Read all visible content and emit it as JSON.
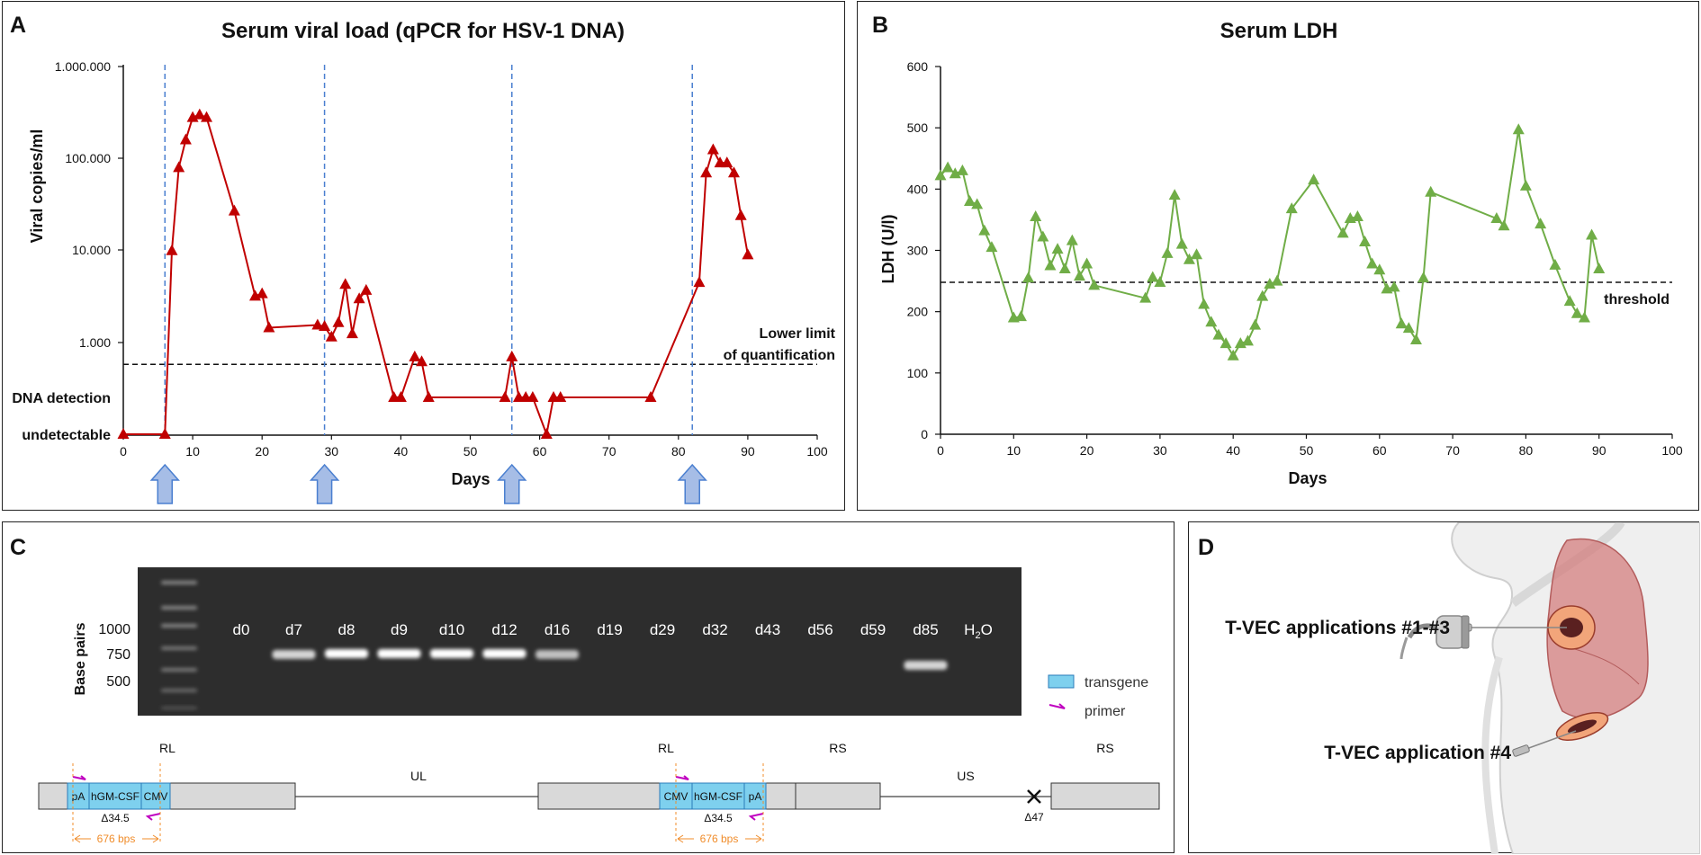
{
  "panel_a": {
    "letter": "A",
    "title": "Serum viral load (qPCR for HSV-1 DNA)",
    "x_label": "Days",
    "y_label": "Viral copies/ml",
    "y_ticks": [
      "1.000.000",
      "100.000",
      "10.000",
      "1.000"
    ],
    "level_labels": [
      "DNA detection",
      "undetectable"
    ],
    "x_ticks": [
      "0",
      "10",
      "20",
      "30",
      "40",
      "50",
      "60",
      "70",
      "80",
      "90",
      "100"
    ],
    "lloq_line1": "Lower limit",
    "lloq_line2": "of quantification",
    "colors": {
      "series": "#c00000",
      "injection": "#4a7fd0",
      "arrow_fill": "#a6bde6"
    }
  },
  "panel_b": {
    "letter": "B",
    "title": "Serum LDH",
    "x_label": "Days",
    "y_label": "LDH (U/l)",
    "threshold_label": "threshold",
    "y_ticks": [
      "0",
      "100",
      "200",
      "300",
      "400",
      "500",
      "600"
    ],
    "x_ticks": [
      "0",
      "10",
      "20",
      "30",
      "40",
      "50",
      "60",
      "70",
      "80",
      "90",
      "100"
    ],
    "colors": {
      "series": "#70ad47"
    }
  },
  "chart_data": [
    {
      "type": "line",
      "title": "Serum viral load (qPCR for HSV-1 DNA)",
      "xlabel": "Days",
      "ylabel": "Viral copies/ml",
      "xlim": [
        0,
        100
      ],
      "yscale": "log",
      "ylim": [
        1000,
        1000000
      ],
      "categorical_levels": [
        "DNA detection",
        "undetectable"
      ],
      "lower_limit_of_quantification": 580,
      "injection_days": [
        6,
        29,
        56,
        82
      ],
      "series": [
        {
          "name": "HSV-1 DNA",
          "points": [
            [
              0,
              "undetectable"
            ],
            [
              6,
              "undetectable"
            ],
            [
              7,
              10000
            ],
            [
              8,
              80000
            ],
            [
              9,
              160000
            ],
            [
              10,
              280000
            ],
            [
              11,
              300000
            ],
            [
              12,
              280000
            ],
            [
              16,
              27000
            ],
            [
              19,
              3200
            ],
            [
              20,
              3400
            ],
            [
              21,
              1450
            ],
            [
              28,
              1550
            ],
            [
              29,
              1500
            ],
            [
              30,
              1150
            ],
            [
              31,
              1650
            ],
            [
              32,
              4300
            ],
            [
              33,
              1250
            ],
            [
              34,
              3000
            ],
            [
              35,
              3700
            ],
            [
              39,
              "DNA detection"
            ],
            [
              40,
              "DNA detection"
            ],
            [
              42,
              700
            ],
            [
              43,
              620
            ],
            [
              44,
              "DNA detection"
            ],
            [
              55,
              "DNA detection"
            ],
            [
              56,
              700
            ],
            [
              57,
              "DNA detection"
            ],
            [
              58,
              "DNA detection"
            ],
            [
              59,
              "DNA detection"
            ],
            [
              61,
              "undetectable"
            ],
            [
              62,
              "DNA detection"
            ],
            [
              63,
              "DNA detection"
            ],
            [
              76,
              "DNA detection"
            ],
            [
              83,
              4500
            ],
            [
              84,
              70000
            ],
            [
              85,
              125000
            ],
            [
              86,
              90000
            ],
            [
              87,
              90000
            ],
            [
              88,
              70000
            ],
            [
              89,
              24000
            ],
            [
              90,
              9000
            ]
          ]
        }
      ]
    },
    {
      "type": "line",
      "title": "Serum LDH",
      "xlabel": "Days",
      "ylabel": "LDH (U/l)",
      "xlim": [
        0,
        100
      ],
      "ylim": [
        0,
        600
      ],
      "threshold": 248,
      "series": [
        {
          "name": "LDH",
          "x": [
            0,
            1,
            2,
            3,
            4,
            5,
            6,
            7,
            10,
            11,
            12,
            13,
            14,
            15,
            16,
            17,
            18,
            19,
            20,
            21,
            28,
            29,
            30,
            31,
            32,
            33,
            34,
            35,
            36,
            37,
            38,
            39,
            40,
            41,
            42,
            43,
            44,
            45,
            46,
            48,
            51,
            55,
            56,
            57,
            58,
            59,
            60,
            61,
            62,
            63,
            64,
            65,
            66,
            67,
            76,
            77,
            79,
            80,
            82,
            84,
            86,
            87,
            88,
            89,
            90
          ],
          "y": [
            422,
            435,
            425,
            430,
            380,
            375,
            332,
            305,
            190,
            192,
            255,
            355,
            322,
            275,
            302,
            270,
            316,
            258,
            278,
            243,
            222,
            256,
            248,
            295,
            390,
            310,
            285,
            293,
            212,
            183,
            162,
            148,
            128,
            148,
            152,
            178,
            225,
            245,
            250,
            368,
            415,
            328,
            352,
            355,
            314,
            278,
            268,
            237,
            240,
            180,
            173,
            154,
            255,
            395,
            352,
            340,
            497,
            405,
            343,
            276,
            217,
            197,
            190,
            325,
            270
          ]
        }
      ]
    }
  ],
  "panel_c": {
    "letter": "C",
    "y_label": "Base pairs",
    "bp_labels": [
      "1000",
      "750",
      "500"
    ],
    "lanes": [
      "d0",
      "d7",
      "d8",
      "d9",
      "d10",
      "d12",
      "d16",
      "d19",
      "d29",
      "d32",
      "d43",
      "d56",
      "d59",
      "d85",
      "H2O"
    ],
    "legend": {
      "transgene": "transgene",
      "primer": "primer"
    },
    "map": {
      "rl": "RL",
      "ul": "UL",
      "rs": "RS",
      "us": "US",
      "pa": "pA",
      "hgm": "hGM-CSF",
      "cmv": "CMV",
      "delta345": "Δ34.5",
      "delta47": "Δ47",
      "amplicon": "676 bps"
    },
    "colors": {
      "transgene": "#7ed0ee",
      "primer": "#c000c0",
      "amplicon": "#f08c2a",
      "gel": "#2d2d2d"
    }
  },
  "panel_d": {
    "letter": "D",
    "label1": "T-VEC applications #1-#3",
    "label2": "T-VEC application #4"
  }
}
